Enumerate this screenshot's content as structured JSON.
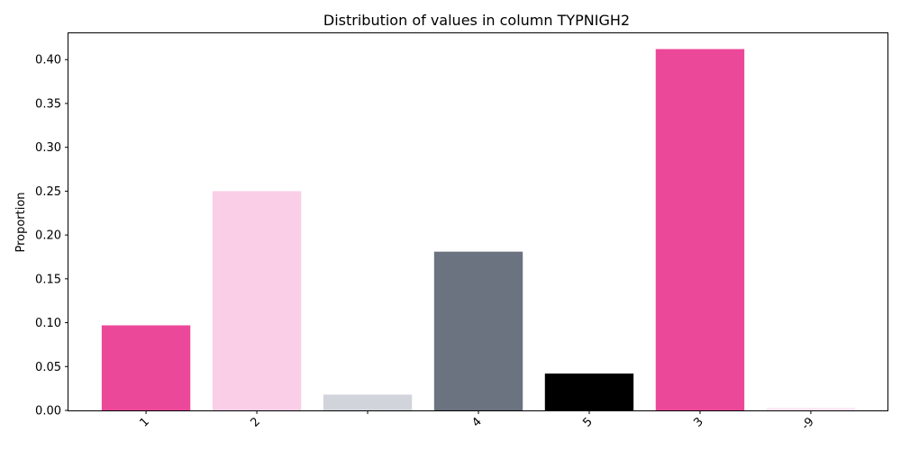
{
  "chart_data": {
    "type": "bar",
    "title": "Distribution of values in column TYPNIGH2",
    "xlabel": "",
    "ylabel": "Proportion",
    "categories": [
      "1",
      "2",
      "",
      "4",
      "5",
      "3",
      "-9"
    ],
    "values": [
      0.097,
      0.25,
      0.018,
      0.181,
      0.042,
      0.412,
      0.003
    ],
    "colors": [
      "#ec4899",
      "#f9cee6",
      "#d1d5db",
      "#6b7280",
      "#000000",
      "#ec4899",
      "#fce7f3"
    ],
    "ylim": [
      0,
      0.43
    ],
    "yticks": [
      "0.00",
      "0.05",
      "0.10",
      "0.15",
      "0.20",
      "0.25",
      "0.30",
      "0.35",
      "0.40"
    ],
    "grid": false,
    "legend": "none"
  }
}
